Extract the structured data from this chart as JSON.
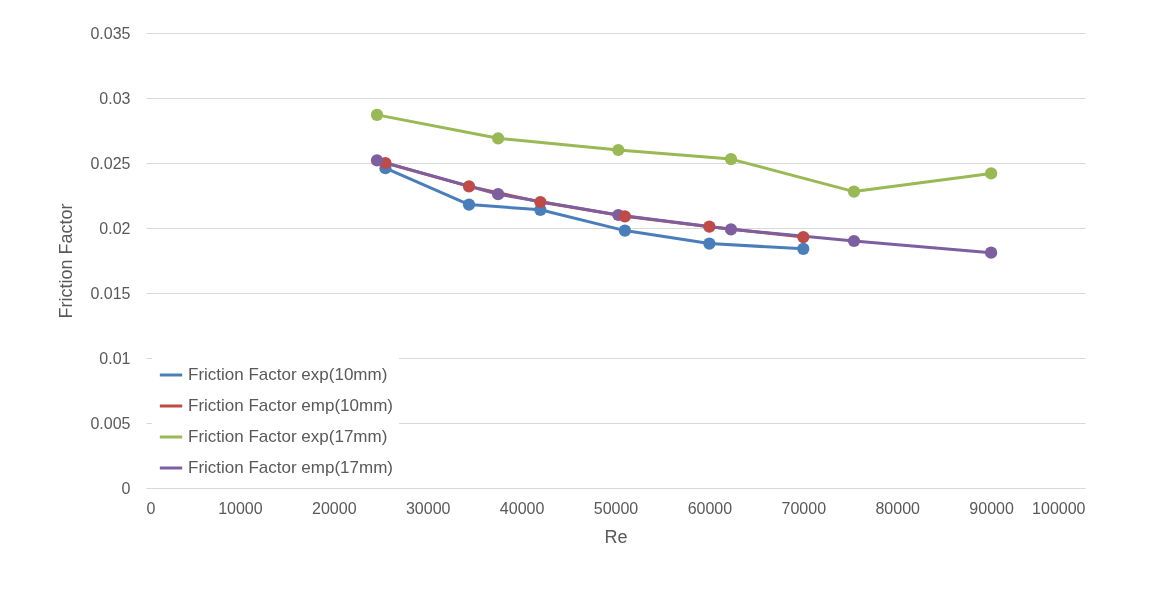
{
  "chart_data": {
    "type": "line",
    "xlabel": "Re",
    "ylabel": "Friction Factor",
    "xlim": [
      0,
      100000
    ],
    "xticks": [
      0,
      10000,
      20000,
      30000,
      40000,
      50000,
      60000,
      70000,
      80000,
      90000,
      100000
    ],
    "ylim": [
      0,
      0.035
    ],
    "yticks": [
      0,
      0.005,
      0.01,
      0.015,
      0.02,
      0.025,
      0.03,
      0.035
    ],
    "grid": "y",
    "legend": "bottom left",
    "marker": "circle",
    "line_style": "solid",
    "series": [
      {
        "name": "Friction Factor exp(10mm)",
        "color": "#4a7ebb",
        "x": [
          25500,
          34400,
          42000,
          51000,
          60000,
          70000
        ],
        "values": [
          0.0246,
          0.0218,
          0.0214,
          0.0198,
          0.0188,
          0.0184
        ]
      },
      {
        "name": "Friction Factor emp(10mm)",
        "color": "#be4b48",
        "x": [
          25500,
          34400,
          42000,
          51000,
          60000,
          70000
        ],
        "values": [
          0.025,
          0.0232,
          0.022,
          0.0209,
          0.0201,
          0.0193
        ]
      },
      {
        "name": "Friction Factor exp(17mm)",
        "color": "#98b954",
        "x": [
          24600,
          37500,
          50300,
          62300,
          75400,
          90000
        ],
        "values": [
          0.0287,
          0.0269,
          0.026,
          0.0253,
          0.0228,
          0.0242
        ]
      },
      {
        "name": "Friction Factor emp(17mm)",
        "color": "#7d5fa0",
        "x": [
          24600,
          37500,
          50300,
          62300,
          75400,
          90000
        ],
        "values": [
          0.0252,
          0.0226,
          0.021,
          0.0199,
          0.019,
          0.0181
        ]
      }
    ]
  }
}
